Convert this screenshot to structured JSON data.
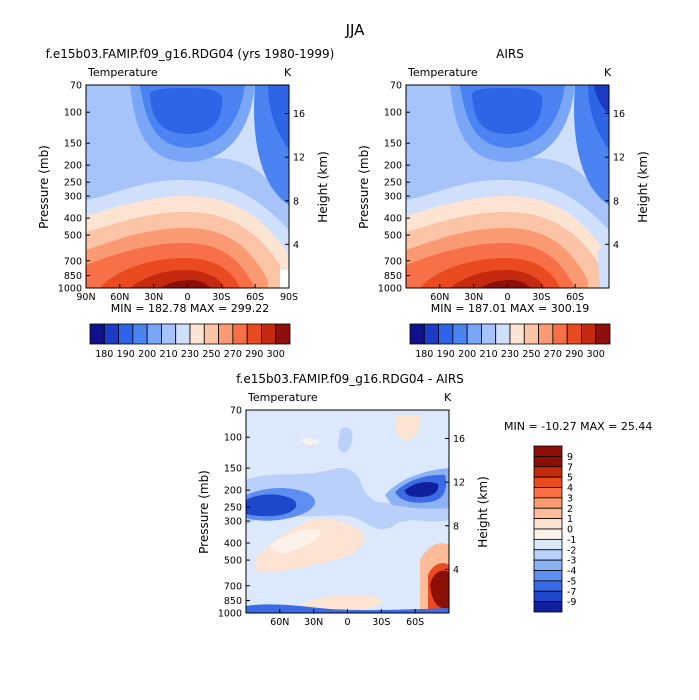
{
  "figure_title": "JJA",
  "chart_data": [
    {
      "type": "heatmap",
      "title": "f.e15b03.FAMIP.f09_g16.RDG04 (yrs 1980-1999)",
      "left_label": "Temperature",
      "right_label": "K",
      "ylabel": "Pressure (mb)",
      "ylabel_right": "Height (km)",
      "x_ticks": [
        "90N",
        "60N",
        "30N",
        "0",
        "30S",
        "60S",
        "90S"
      ],
      "y_ticks": [
        70,
        100,
        150,
        200,
        250,
        300,
        400,
        500,
        700,
        850,
        1000
      ],
      "height_ticks": [
        16,
        12,
        8,
        4
      ],
      "stats": "MIN = 182.78   MAX = 299.22",
      "colorbar_labels": [
        "180",
        "190",
        "200",
        "210",
        "230",
        "250",
        "270",
        "290",
        "300"
      ],
      "colors": [
        "#10108c",
        "#1c3cc8",
        "#2e64e6",
        "#4b84f2",
        "#7aa6f6",
        "#a6c4fa",
        "#cfdffc",
        "#fde3d2",
        "#fcc4a6",
        "#fa9a72",
        "#f77048",
        "#ea4a20",
        "#c42a0e",
        "#8c1006"
      ]
    },
    {
      "type": "heatmap",
      "title": "AIRS",
      "left_label": "Temperature",
      "right_label": "K",
      "ylabel": "Pressure (mb)",
      "ylabel_right": "Height (km)",
      "x_ticks": [
        "60N",
        "30N",
        "0",
        "30S",
        "60S"
      ],
      "y_ticks": [
        70,
        100,
        150,
        200,
        250,
        300,
        400,
        500,
        700,
        850,
        1000
      ],
      "height_ticks": [
        16,
        12,
        8,
        4
      ],
      "stats": "MIN = 187.01   MAX = 300.19",
      "colorbar_labels": [
        "180",
        "190",
        "200",
        "210",
        "230",
        "250",
        "270",
        "290",
        "300"
      ]
    },
    {
      "type": "heatmap",
      "title": "f.e15b03.FAMIP.f09_g16.RDG04 - AIRS",
      "left_label": "Temperature",
      "right_label": "K",
      "ylabel": "Pressure (mb)",
      "ylabel_right": "Height (km)",
      "x_ticks": [
        "60N",
        "30N",
        "0",
        "30S",
        "60S"
      ],
      "y_ticks": [
        70,
        100,
        150,
        200,
        250,
        300,
        400,
        500,
        700,
        850,
        1000
      ],
      "height_ticks": [
        16,
        12,
        8,
        4
      ],
      "stats": "MIN = -10.27   MAX =  25.44",
      "colorbar_labels": [
        "9",
        "7",
        "5",
        "4",
        "3",
        "2",
        "1",
        "0",
        "-1",
        "-2",
        "-3",
        "-4",
        "-5",
        "-7",
        "-9"
      ],
      "colors": [
        "#8c1006",
        "#c42a0e",
        "#ea4a20",
        "#f77048",
        "#fa9a72",
        "#fcbc9a",
        "#fde3d2",
        "#fdf2ea",
        "#dce8fc",
        "#b8d0fa",
        "#8cb2f6",
        "#5e8ef2",
        "#3a6ae6",
        "#1e48cc",
        "#10209c"
      ]
    }
  ]
}
